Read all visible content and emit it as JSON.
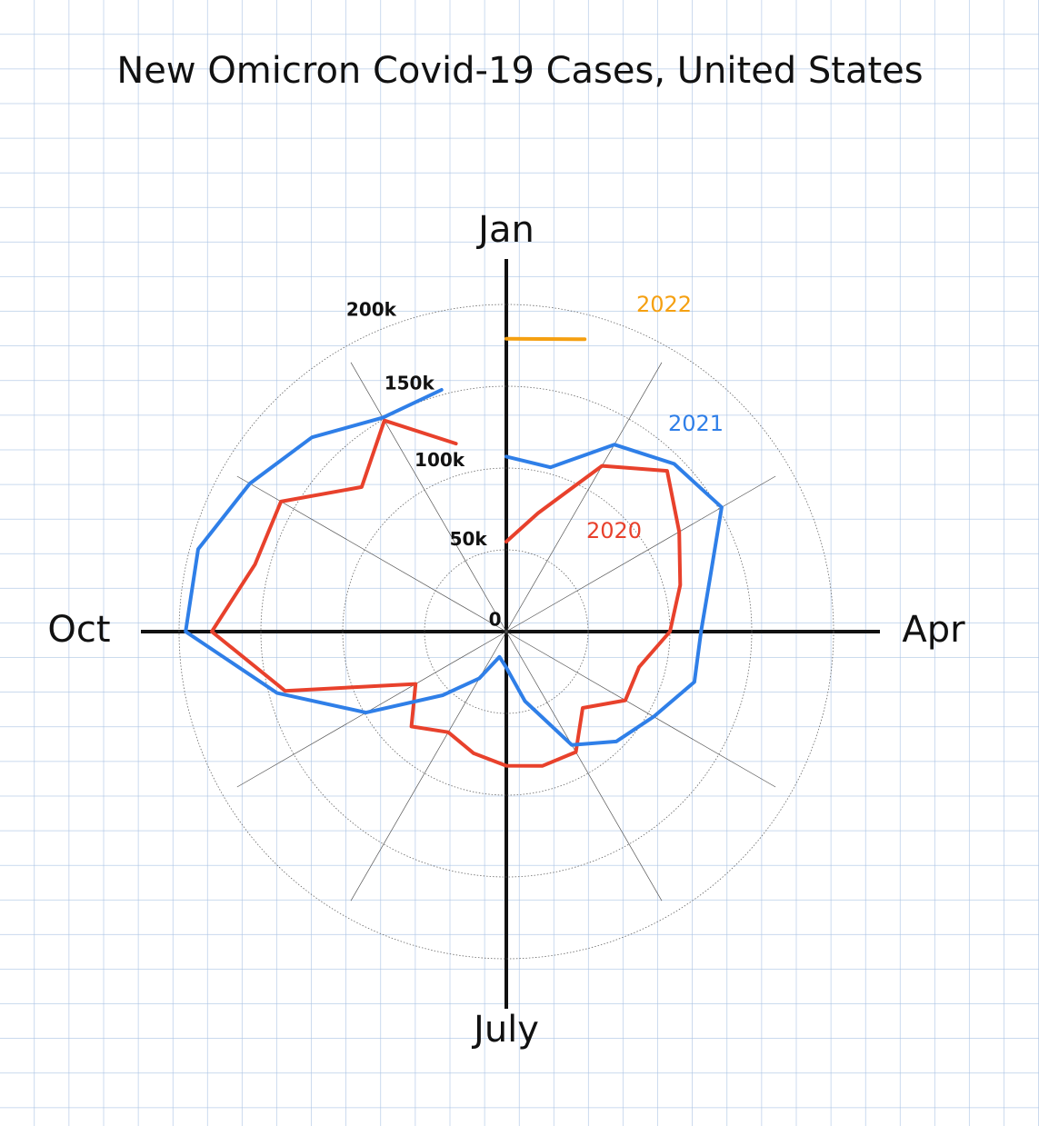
{
  "chart_data": {
    "type": "polar-line",
    "title": "New Omicron Covid-19 Cases, United States",
    "categories": [
      "Jan",
      null,
      null,
      null,
      null,
      null,
      "Apr",
      null,
      null,
      null,
      null,
      null,
      "July",
      null,
      null,
      null,
      null,
      null,
      "Oct",
      null,
      null,
      null,
      null,
      null
    ],
    "series": [
      {
        "name": "2020",
        "color": "#e8412c",
        "values": [
          55000,
          75000,
          117000,
          139000,
          122000,
          110000,
          100000,
          84000,
          84000,
          66000,
          85000,
          85000,
          82000,
          77000,
          71000,
          82000,
          64000,
          140000,
          180000,
          159000,
          159000,
          125000,
          149000,
          119000
        ]
      },
      {
        "name": "2021",
        "color": "#2f7fe8",
        "values": [
          107000,
          104000,
          132000,
          145000,
          152000,
          129000,
          119000,
          119000,
          104000,
          95000,
          80000,
          44000,
          22000,
          16000,
          33000,
          55000,
          99000,
          145000,
          196000,
          195000,
          181000,
          168000,
          151000,
          153000
        ]
      },
      {
        "name": "2022",
        "color": "#f5a011",
        "values": [
          179000,
          185000,
          null,
          null,
          null,
          null,
          null,
          null,
          null,
          null,
          null,
          null,
          null,
          null,
          null,
          null,
          null,
          null,
          null,
          null,
          null,
          null,
          null,
          null
        ]
      }
    ],
    "rlim": [
      0,
      200000
    ],
    "rticks": [
      0,
      {
        "value": 50000,
        "label": "50k"
      },
      {
        "value": 100000,
        "label": "100k"
      },
      {
        "value": 150000,
        "label": "150k"
      },
      {
        "value": 200000,
        "label": "200k"
      }
    ],
    "grid": true
  }
}
